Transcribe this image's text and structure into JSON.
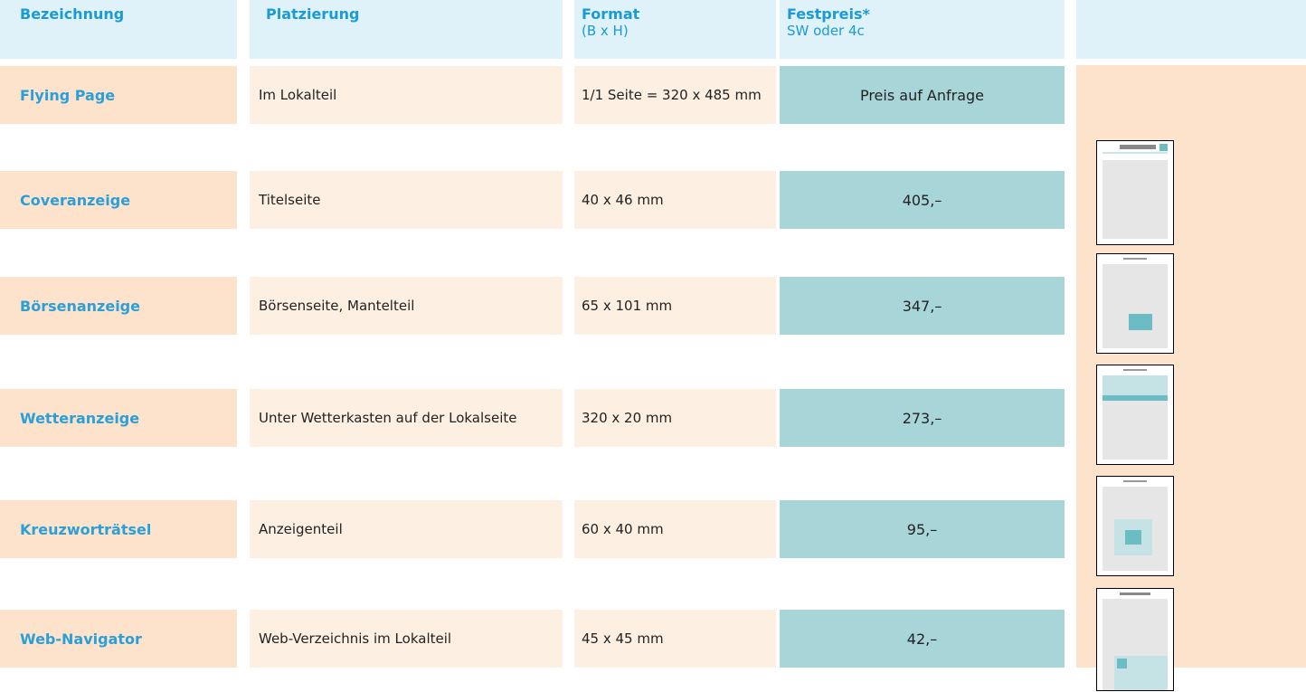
{
  "header": {
    "columns": [
      {
        "title": "Bezeichnung"
      },
      {
        "title": "Platzierung"
      },
      {
        "title": "Format",
        "subtitle": "(B x H)"
      },
      {
        "title": "Festpreis*",
        "subtitle": "SW oder 4c"
      }
    ]
  },
  "table": {
    "rows": [
      [
        "Flying Page",
        "Im Lokalteil",
        "1/1 Seite = 320 x 485 mm",
        "Preis auf Anfrage"
      ],
      [
        "Coveranzeige",
        "Titelseite",
        "40 x 46 mm",
        "405,–"
      ],
      [
        "Börsenanzeige",
        "Börsenseite, Mantelteil",
        "65 x 101 mm",
        "347,–"
      ],
      [
        "Wetteranzeige",
        "Unter Wetterkasten auf der Lokalseite",
        "320 x 20 mm",
        "273,–"
      ],
      [
        "Kreuzworträtsel",
        "Anzeigenteil",
        "60 x 40 mm",
        "95,–"
      ],
      [
        "Web-Navigator",
        "Web-Verzeichnis im Lokalteil",
        "45 x 45 mm",
        "42,–"
      ]
    ]
  }
}
